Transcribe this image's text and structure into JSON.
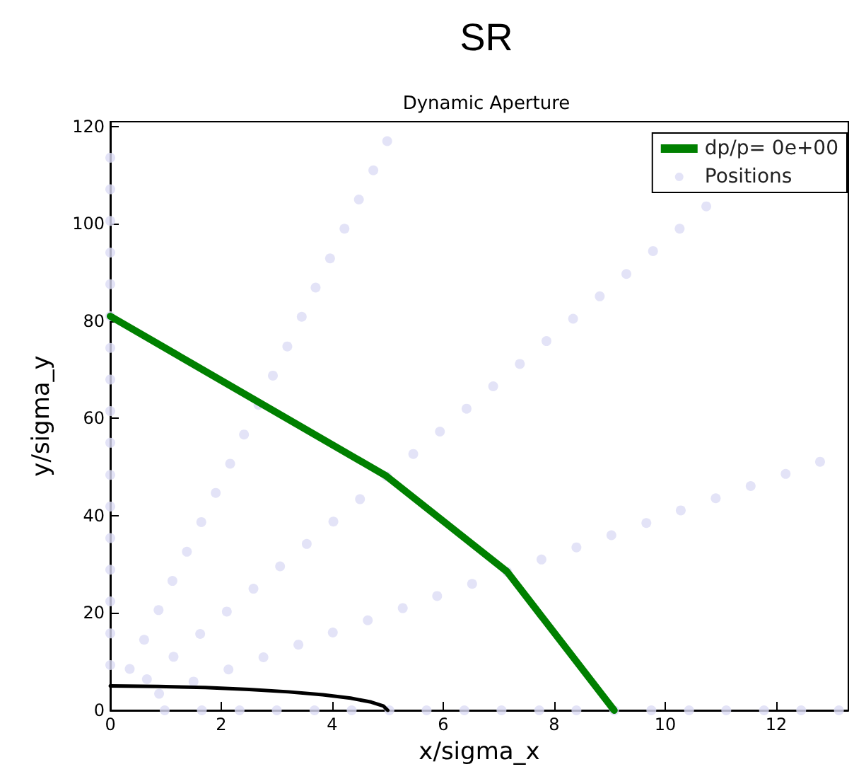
{
  "chart_data": {
    "type": "line",
    "title": "SR",
    "subtitle": "Dynamic Aperture",
    "xlabel": "x/sigma_x",
    "ylabel": "y/sigma_y",
    "xlim": [
      0,
      13.3
    ],
    "xticks": [
      0,
      2,
      4,
      6,
      8,
      10,
      12
    ],
    "ylim": [
      0,
      121
    ],
    "yticks": [
      0,
      20,
      40,
      60,
      80,
      100,
      120
    ],
    "grid": false,
    "legend": "top right",
    "series": [
      {
        "name": "dp/p= 0e+00",
        "color": "#008000",
        "marker": "none",
        "x": [
          0,
          4.97,
          7.15,
          9.08
        ],
        "values": [
          81,
          48.2,
          28.5,
          0
        ]
      },
      {
        "name": "Positions",
        "type": "scatter",
        "color": "#dcdcf5",
        "marker": "circle",
        "x": [
          0,
          0,
          0,
          0,
          0,
          0,
          0,
          0,
          0,
          0,
          0,
          0,
          0,
          0,
          0,
          0,
          0,
          0.35,
          0.61,
          0.87,
          1.12,
          1.38,
          1.64,
          1.9,
          2.16,
          2.41,
          2.67,
          2.93,
          3.19,
          3.45,
          3.7,
          3.96,
          4.22,
          4.48,
          4.74,
          4.99,
          0.66,
          1.14,
          1.62,
          2.1,
          2.58,
          3.06,
          3.54,
          4.02,
          4.5,
          4.98,
          5.46,
          5.94,
          6.42,
          6.9,
          7.38,
          7.86,
          8.34,
          8.82,
          9.3,
          9.78,
          10.26,
          10.74,
          0.88,
          1.5,
          2.13,
          2.76,
          3.39,
          4.01,
          4.64,
          5.27,
          5.89,
          6.52,
          7.15,
          7.77,
          8.4,
          9.03,
          9.66,
          10.28,
          10.91,
          11.54,
          12.17,
          12.79,
          0.98,
          1.65,
          2.33,
          3.0,
          3.68,
          4.35,
          5.03,
          5.7,
          6.38,
          7.05,
          7.73,
          8.4,
          9.08,
          9.75,
          10.43,
          11.1,
          11.78,
          12.45,
          13.13
        ],
        "values": [
          9.3,
          15.8,
          22.4,
          28.9,
          35.4,
          41.9,
          48.4,
          55.0,
          61.5,
          68.0,
          74.5,
          81.0,
          87.6,
          94.1,
          100.6,
          107.1,
          113.6,
          8.5,
          14.5,
          20.6,
          26.6,
          32.6,
          38.7,
          44.7,
          50.7,
          56.7,
          62.8,
          68.8,
          74.8,
          80.9,
          86.9,
          92.9,
          99.0,
          105.0,
          111.0,
          117.0,
          6.4,
          11.0,
          15.7,
          20.3,
          25.0,
          29.6,
          34.2,
          38.8,
          43.4,
          48.1,
          52.7,
          57.3,
          62.0,
          66.6,
          71.2,
          75.9,
          80.5,
          85.1,
          89.7,
          94.4,
          99.0,
          103.6,
          3.4,
          5.9,
          8.4,
          10.9,
          13.5,
          16.0,
          18.5,
          21.0,
          23.5,
          26.0,
          28.5,
          31.0,
          33.5,
          36.0,
          38.5,
          41.1,
          43.6,
          46.1,
          48.6,
          51.1,
          0,
          0,
          0,
          0,
          0,
          0,
          0,
          0,
          0,
          0,
          0,
          0,
          0,
          0,
          0,
          0,
          0,
          0,
          0
        ]
      },
      {
        "color": "#000000",
        "marker": "none",
        "x": [
          0,
          0.87,
          1.71,
          2.5,
          3.21,
          3.83,
          4.33,
          4.7,
          4.92,
          5
        ],
        "values": [
          5,
          4.9,
          4.7,
          4.3,
          3.8,
          3.2,
          2.5,
          1.7,
          0.9,
          0
        ]
      }
    ]
  }
}
